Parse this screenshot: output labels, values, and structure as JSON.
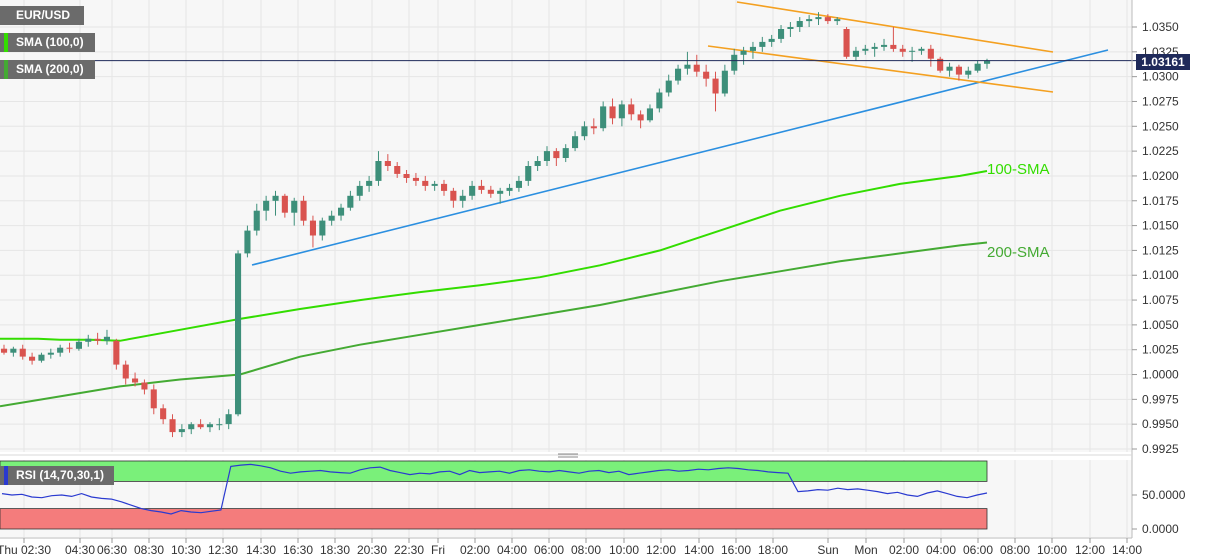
{
  "symbol": "EUR/USD",
  "indicators": {
    "sma100": "SMA (100,0)",
    "sma200": "SMA (200,0)",
    "rsi": "RSI (14,70,30,1)"
  },
  "current_price": "1.03161",
  "colors": {
    "up_candle": "#3d8f7a",
    "down_candle": "#d9534f",
    "sma100": "#33dd00",
    "sma200": "#44aa33",
    "trendline": "#2b8fe0",
    "channel": "#f4a020",
    "price_line": "#1f2a5a",
    "rsi_line": "#2a3ad0",
    "rsi_overbought_zone": "#7af07a",
    "rsi_oversold_zone": "#f47c7c"
  },
  "chart_data": {
    "type": "candlestick",
    "title": "EUR/USD",
    "y_axis": {
      "ticks": [
        "1.0350",
        "1.0325",
        "1.0300",
        "1.0275",
        "1.0250",
        "1.0225",
        "1.0200",
        "1.0175",
        "1.0150",
        "1.0125",
        "1.0100",
        "1.0075",
        "1.0050",
        "1.0025",
        "1.0000",
        "0.9975",
        "0.9950",
        "0.9925"
      ],
      "range": [
        0.992,
        1.0375
      ]
    },
    "x_axis": {
      "ticks": [
        "Thu 02:30",
        "04:30",
        "06:30",
        "08:30",
        "10:30",
        "12:30",
        "14:30",
        "16:30",
        "18:30",
        "20:30",
        "22:30",
        "Fri",
        "02:00",
        "04:00",
        "06:00",
        "08:00",
        "10:00",
        "12:00",
        "14:00",
        "16:00",
        "18:00",
        "Sun",
        "Mon",
        "02:00",
        "04:00",
        "06:00",
        "08:00",
        "10:00",
        "12:00",
        "14:00"
      ]
    },
    "candles": [
      [
        1.0026,
        1.003,
        1.002,
        1.0022
      ],
      [
        1.0022,
        1.0028,
        1.0018,
        1.0026
      ],
      [
        1.0026,
        1.003,
        1.0015,
        1.0018
      ],
      [
        1.0018,
        1.0022,
        1.001,
        1.0014
      ],
      [
        1.0014,
        1.0022,
        1.0012,
        1.002
      ],
      [
        1.002,
        1.0026,
        1.0016,
        1.0022
      ],
      [
        1.0022,
        1.003,
        1.0018,
        1.0027
      ],
      [
        1.0027,
        1.0032,
        1.0022,
        1.0026
      ],
      [
        1.0026,
        1.0036,
        1.0024,
        1.0033
      ],
      [
        1.0033,
        1.004,
        1.0028,
        1.0036
      ],
      [
        1.0036,
        1.0042,
        1.003,
        1.0034
      ],
      [
        1.0034,
        1.0045,
        1.003,
        1.0038
      ],
      [
        1.0034,
        1.0036,
        1.0005,
        1.001
      ],
      [
        1.001,
        1.0014,
        0.999,
        0.9996
      ],
      [
        0.9996,
        1.0002,
        0.9988,
        0.9992
      ],
      [
        0.9992,
        0.9995,
        0.998,
        0.9985
      ],
      [
        0.9985,
        0.999,
        0.996,
        0.9966
      ],
      [
        0.9966,
        0.997,
        0.995,
        0.9955
      ],
      [
        0.9955,
        0.996,
        0.9937,
        0.9942
      ],
      [
        0.9942,
        0.995,
        0.9937,
        0.9945
      ],
      [
        0.9945,
        0.9952,
        0.994,
        0.995
      ],
      [
        0.995,
        0.9955,
        0.9945,
        0.9947
      ],
      [
        0.9947,
        0.9952,
        0.9942,
        0.995
      ],
      [
        0.995,
        0.9956,
        0.9944,
        0.995
      ],
      [
        0.995,
        0.9965,
        0.9945,
        0.996
      ],
      [
        0.996,
        1.0125,
        0.9958,
        1.0122
      ],
      [
        1.0122,
        1.015,
        1.0118,
        1.0145
      ],
      [
        1.0145,
        1.0172,
        1.014,
        1.0165
      ],
      [
        1.0165,
        1.018,
        1.0155,
        1.0175
      ],
      [
        1.0175,
        1.0185,
        1.016,
        1.018
      ],
      [
        1.018,
        1.0182,
        1.0158,
        1.0163
      ],
      [
        1.0163,
        1.0178,
        1.015,
        1.0175
      ],
      [
        1.0175,
        1.018,
        1.015,
        1.0155
      ],
      [
        1.0155,
        1.016,
        1.0128,
        1.014
      ],
      [
        1.014,
        1.0158,
        1.0135,
        1.0155
      ],
      [
        1.0155,
        1.0165,
        1.015,
        1.016
      ],
      [
        1.016,
        1.0172,
        1.0155,
        1.0168
      ],
      [
        1.0168,
        1.0185,
        1.0165,
        1.018
      ],
      [
        1.018,
        1.0195,
        1.0175,
        1.019
      ],
      [
        1.019,
        1.02,
        1.0184,
        1.0195
      ],
      [
        1.0195,
        1.0225,
        1.019,
        1.0215
      ],
      [
        1.0215,
        1.0222,
        1.0205,
        1.021
      ],
      [
        1.021,
        1.0214,
        1.0198,
        1.0202
      ],
      [
        1.0202,
        1.0206,
        1.0193,
        1.0198
      ],
      [
        1.0198,
        1.0203,
        1.019,
        1.0195
      ],
      [
        1.0195,
        1.02,
        1.0185,
        1.019
      ],
      [
        1.019,
        1.0195,
        1.0185,
        1.0192
      ],
      [
        1.0192,
        1.0196,
        1.018,
        1.0185
      ],
      [
        1.0185,
        1.0188,
        1.0168,
        1.0175
      ],
      [
        1.0175,
        1.0186,
        1.0168,
        1.018
      ],
      [
        1.018,
        1.0195,
        1.0176,
        1.019
      ],
      [
        1.019,
        1.0196,
        1.0182,
        1.0186
      ],
      [
        1.0186,
        1.019,
        1.0178,
        1.0182
      ],
      [
        1.0182,
        1.0188,
        1.0172,
        1.0185
      ],
      [
        1.0185,
        1.0192,
        1.018,
        1.0188
      ],
      [
        1.0188,
        1.02,
        1.0184,
        1.0195
      ],
      [
        1.0195,
        1.0215,
        1.019,
        1.021
      ],
      [
        1.021,
        1.022,
        1.0205,
        1.0215
      ],
      [
        1.0215,
        1.023,
        1.021,
        1.0225
      ],
      [
        1.0225,
        1.0228,
        1.021,
        1.0218
      ],
      [
        1.0218,
        1.0232,
        1.0214,
        1.0228
      ],
      [
        1.0228,
        1.0245,
        1.0225,
        1.024
      ],
      [
        1.024,
        1.0255,
        1.0236,
        1.025
      ],
      [
        1.025,
        1.0258,
        1.0242,
        1.0248
      ],
      [
        1.0248,
        1.0275,
        1.0245,
        1.027
      ],
      [
        1.027,
        1.0278,
        1.0252,
        1.0258
      ],
      [
        1.0258,
        1.0276,
        1.025,
        1.0272
      ],
      [
        1.0272,
        1.0278,
        1.0256,
        1.0262
      ],
      [
        1.0262,
        1.0266,
        1.0248,
        1.0256
      ],
      [
        1.0256,
        1.0272,
        1.0254,
        1.0268
      ],
      [
        1.0268,
        1.0288,
        1.0264,
        1.0284
      ],
      [
        1.0284,
        1.0302,
        1.028,
        1.0296
      ],
      [
        1.0296,
        1.0312,
        1.0292,
        1.0308
      ],
      [
        1.0308,
        1.0325,
        1.0302,
        1.0312
      ],
      [
        1.0312,
        1.0322,
        1.03,
        1.0305
      ],
      [
        1.0305,
        1.0312,
        1.029,
        1.0298
      ],
      [
        1.0298,
        1.0305,
        1.0265,
        1.0283
      ],
      [
        1.0283,
        1.0312,
        1.028,
        1.0306
      ],
      [
        1.0306,
        1.0328,
        1.0302,
        1.0322
      ],
      [
        1.0322,
        1.033,
        1.0312,
        1.0326
      ],
      [
        1.0326,
        1.0335,
        1.0318,
        1.033
      ],
      [
        1.033,
        1.034,
        1.0325,
        1.0335
      ],
      [
        1.0335,
        1.0342,
        1.033,
        1.0338
      ],
      [
        1.0338,
        1.0352,
        1.0334,
        1.0348
      ],
      [
        1.0348,
        1.0355,
        1.034,
        1.035
      ],
      [
        1.035,
        1.036,
        1.0345,
        1.0356
      ],
      [
        1.0356,
        1.0362,
        1.035,
        1.0358
      ],
      [
        1.0358,
        1.0365,
        1.0352,
        1.036
      ],
      [
        1.036,
        1.0363,
        1.0353,
        1.0356
      ],
      [
        1.0356,
        1.036,
        1.0352,
        1.0358
      ],
      [
        1.0348,
        1.035,
        1.0318,
        1.032
      ],
      [
        1.032,
        1.033,
        1.0316,
        1.0326
      ],
      [
        1.0326,
        1.0332,
        1.0322,
        1.0328
      ],
      [
        1.0328,
        1.0334,
        1.032,
        1.033
      ],
      [
        1.033,
        1.0338,
        1.0326,
        1.0332
      ],
      [
        1.0332,
        1.035,
        1.0325,
        1.0328
      ],
      [
        1.0328,
        1.0332,
        1.032,
        1.0325
      ],
      [
        1.0325,
        1.033,
        1.0315,
        1.0326
      ],
      [
        1.0326,
        1.033,
        1.0322,
        1.0328
      ],
      [
        1.0328,
        1.0332,
        1.031,
        1.0318
      ],
      [
        1.0318,
        1.032,
        1.0304,
        1.0306
      ],
      [
        1.0306,
        1.0314,
        1.03,
        1.031
      ],
      [
        1.031,
        1.0312,
        1.0296,
        1.0302
      ],
      [
        1.0302,
        1.031,
        1.0298,
        1.0306
      ],
      [
        1.0306,
        1.0316,
        1.0304,
        1.0313
      ],
      [
        1.0313,
        1.0318,
        1.0308,
        1.0316
      ]
    ],
    "sma_100": [
      [
        0,
        1.0036
      ],
      [
        38,
        1.0036
      ],
      [
        60,
        1.0035
      ],
      [
        90,
        1.0035
      ],
      [
        120,
        1.0034
      ],
      [
        180,
        1.0045
      ],
      [
        240,
        1.0056
      ],
      [
        300,
        1.0066
      ],
      [
        360,
        1.0075
      ],
      [
        420,
        1.0083
      ],
      [
        480,
        1.009
      ],
      [
        540,
        1.0098
      ],
      [
        600,
        1.011
      ],
      [
        660,
        1.0125
      ],
      [
        720,
        1.0145
      ],
      [
        780,
        1.0165
      ],
      [
        840,
        1.018
      ],
      [
        900,
        1.0192
      ],
      [
        960,
        1.02
      ],
      [
        987,
        1.0205
      ]
    ],
    "sma_200": [
      [
        0,
        0.9968
      ],
      [
        60,
        0.9978
      ],
      [
        120,
        0.9988
      ],
      [
        180,
        0.9995
      ],
      [
        240,
        1.0
      ],
      [
        300,
        1.0018
      ],
      [
        360,
        1.003
      ],
      [
        420,
        1.004
      ],
      [
        480,
        1.005
      ],
      [
        540,
        1.006
      ],
      [
        600,
        1.007
      ],
      [
        660,
        1.0082
      ],
      [
        720,
        1.0094
      ],
      [
        780,
        1.0104
      ],
      [
        840,
        1.0114
      ],
      [
        900,
        1.0122
      ],
      [
        960,
        1.013
      ],
      [
        987,
        1.0133
      ]
    ],
    "annotations": [
      "100-SMA",
      "200-SMA"
    ],
    "rsi": {
      "ticks": [
        "50.0000",
        "0.0000"
      ],
      "range": [
        0,
        100
      ],
      "overbought": 70,
      "oversold": 30,
      "values": [
        52,
        50,
        51,
        47,
        46,
        49,
        50,
        48,
        52,
        47,
        45,
        44,
        40,
        35,
        30,
        27,
        25,
        22,
        27,
        25,
        24,
        26,
        28,
        92,
        94,
        95,
        93,
        90,
        85,
        82,
        84,
        85,
        86,
        84,
        83,
        82,
        87,
        90,
        91,
        86,
        83,
        80,
        82,
        81,
        84,
        85,
        80,
        86,
        83,
        84,
        85,
        82,
        86,
        87,
        85,
        84,
        86,
        84,
        82,
        85,
        86,
        83,
        85,
        80,
        82,
        84,
        86,
        87,
        85,
        86,
        88,
        87,
        89,
        90,
        89,
        87,
        86,
        84,
        83,
        82,
        55,
        56,
        58,
        57,
        60,
        58,
        59,
        57,
        55,
        52,
        54,
        50,
        48,
        53,
        56,
        52,
        48,
        46,
        50,
        53
      ]
    }
  }
}
